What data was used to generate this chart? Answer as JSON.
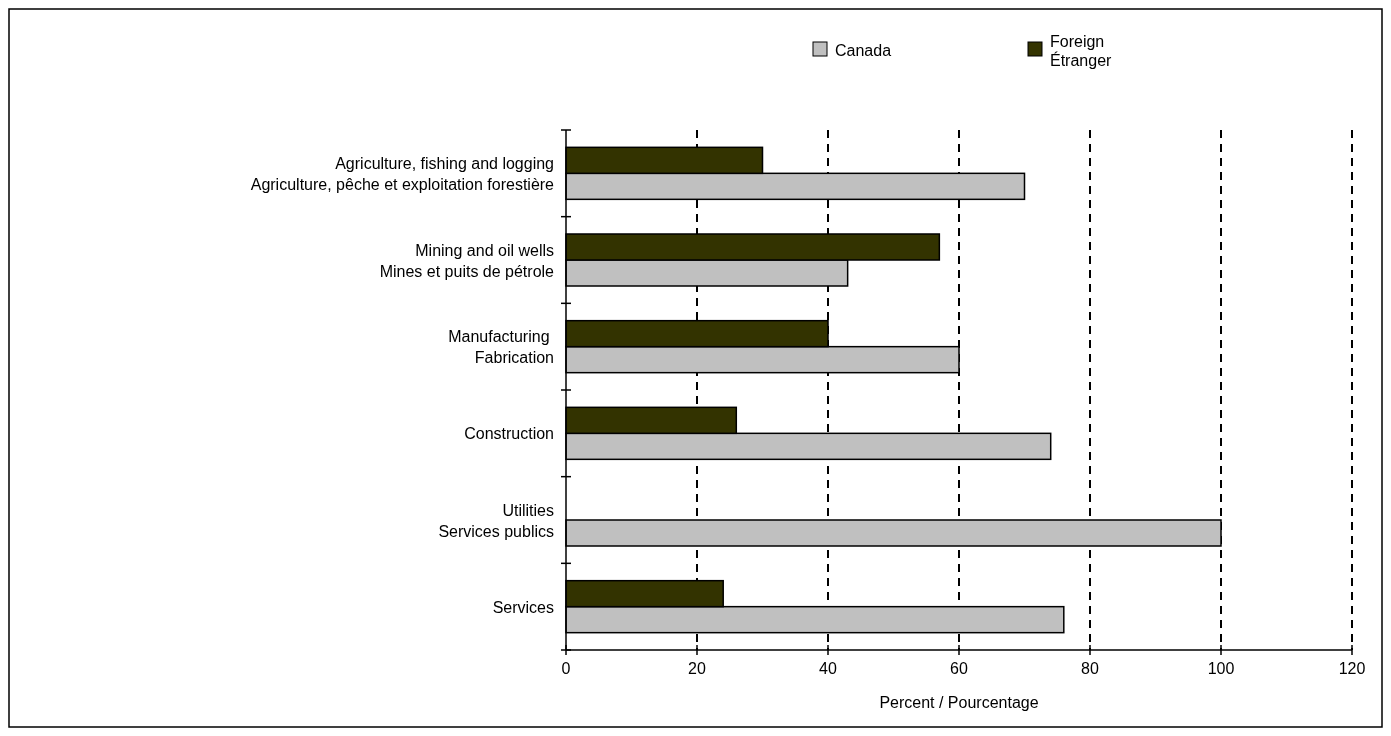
{
  "chart_data": {
    "type": "bar",
    "orientation": "horizontal",
    "xlabel": "Percent / Pourcentage",
    "categories": [
      "Agriculture, fishing and logging\nAgriculture, pêche et exploitation forestière",
      "Mining and oil wells\nMines et puits de pétrole",
      "Manufacturing \nFabrication",
      "Construction",
      "Utilities\nServices publics ",
      "Services"
    ],
    "series": [
      {
        "name": "Canada",
        "color": "#c0c0c0",
        "values": [
          70,
          43,
          60,
          74,
          100,
          76
        ]
      },
      {
        "name": "Foreign\nÉtranger",
        "color": "#333300",
        "values": [
          30,
          57,
          40,
          26,
          0,
          24
        ]
      }
    ],
    "xlim": [
      0,
      120
    ],
    "xticks": [
      0,
      20,
      40,
      60,
      80,
      100,
      120
    ],
    "grid": "x",
    "legend": "top"
  }
}
